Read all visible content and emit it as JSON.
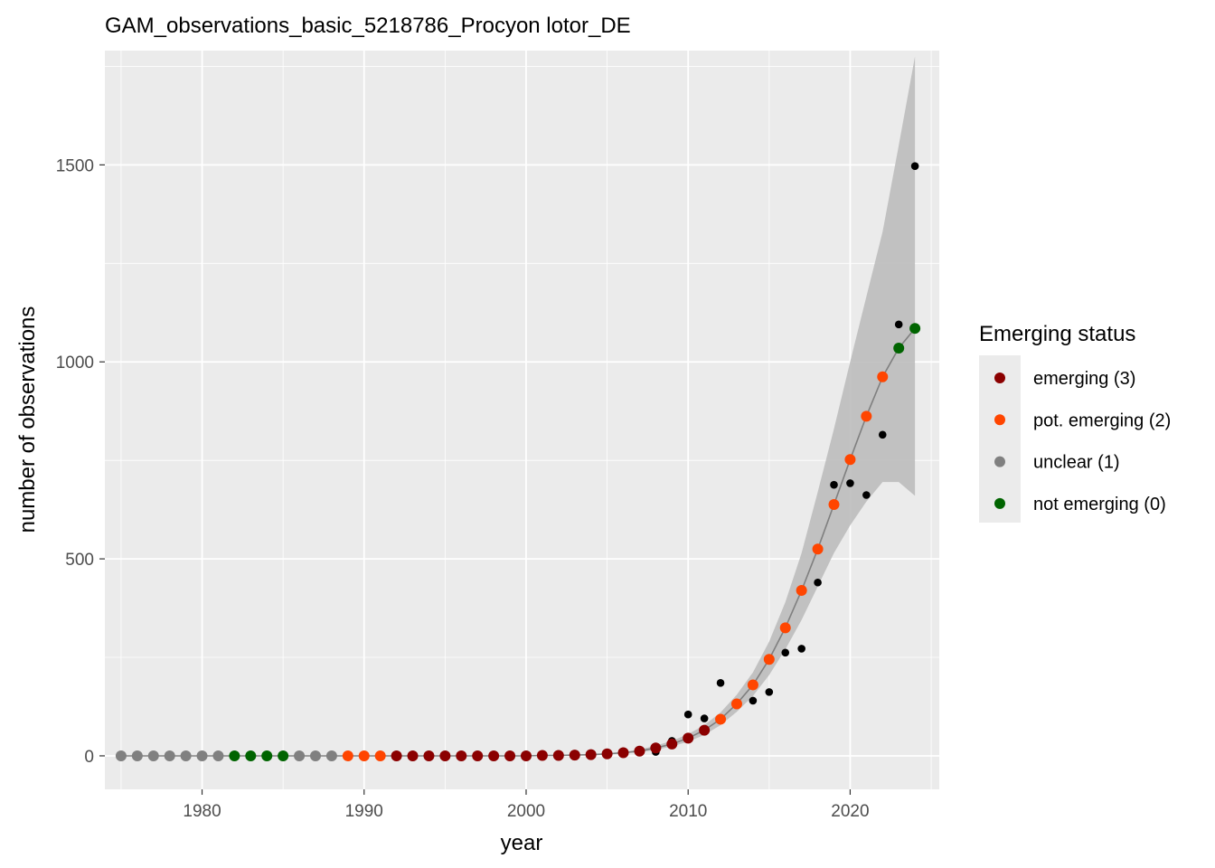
{
  "chart_data": {
    "type": "scatter",
    "title": "GAM_observations_basic_5218786_Procyon lotor_DE",
    "xlabel": "year",
    "ylabel": "number of observations",
    "xlim": [
      1974,
      2025.5
    ],
    "ylim": [
      -85,
      1790
    ],
    "x_ticks": [
      1980,
      1990,
      2000,
      2010,
      2020
    ],
    "x_tick_labels": [
      "1980",
      "1990",
      "2000",
      "2010",
      "2020"
    ],
    "y_ticks": [
      0,
      500,
      1000,
      1500
    ],
    "y_tick_labels": [
      "0",
      "500",
      "1000",
      "1500"
    ],
    "grid": true,
    "legend": {
      "title": "Emerging status",
      "position": "right",
      "entries": [
        {
          "label": "emerging (3)",
          "color": "#8b0000"
        },
        {
          "label": "pot. emerging (2)",
          "color": "#ff4500"
        },
        {
          "label": "unclear (1)",
          "color": "#808080"
        },
        {
          "label": "not emerging (0)",
          "color": "#006400"
        }
      ]
    },
    "colors": {
      "panel": "#ebebeb",
      "grid": "#ffffff",
      "ribbon": "#bdbdbd",
      "fit_line": "#7f7f7f",
      "observed": "#000000"
    },
    "observed": {
      "x": [
        2008,
        2009,
        2010,
        2011,
        2012,
        2014,
        2015,
        2016,
        2017,
        2018,
        2019,
        2020,
        2021,
        2022,
        2023,
        2024
      ],
      "y": [
        10,
        38,
        105,
        95,
        185,
        140,
        162,
        262,
        272,
        440,
        688,
        692,
        662,
        815,
        1095,
        1497
      ]
    },
    "gam_fit": {
      "x": [
        1975,
        1976,
        1977,
        1978,
        1979,
        1980,
        1981,
        1982,
        1983,
        1984,
        1985,
        1986,
        1987,
        1988,
        1989,
        1990,
        1991,
        1992,
        1993,
        1994,
        1995,
        1996,
        1997,
        1998,
        1999,
        2000,
        2001,
        2002,
        2003,
        2004,
        2005,
        2006,
        2007,
        2008,
        2009,
        2010,
        2011,
        2012,
        2013,
        2014,
        2015,
        2016,
        2017,
        2018,
        2019,
        2020,
        2021,
        2022,
        2023,
        2024
      ],
      "y": [
        0,
        0,
        0,
        0,
        0,
        0,
        0,
        0,
        0,
        0,
        0,
        0,
        0,
        0,
        0,
        0,
        0,
        0,
        0,
        0,
        0,
        0,
        0,
        0,
        0,
        0,
        1,
        1,
        2,
        3,
        5,
        8,
        12,
        20,
        30,
        45,
        65,
        93,
        132,
        180,
        245,
        325,
        420,
        525,
        638,
        752,
        862,
        962,
        1035,
        1085
      ],
      "status": [
        1,
        1,
        1,
        1,
        1,
        1,
        1,
        0,
        0,
        0,
        0,
        1,
        1,
        1,
        2,
        2,
        2,
        3,
        3,
        3,
        3,
        3,
        3,
        3,
        3,
        3,
        3,
        3,
        3,
        3,
        3,
        3,
        3,
        3,
        3,
        3,
        3,
        2,
        2,
        2,
        2,
        2,
        2,
        2,
        2,
        2,
        2,
        2,
        0,
        0
      ],
      "ci_lower": [
        0,
        0,
        0,
        0,
        0,
        0,
        0,
        0,
        0,
        0,
        0,
        0,
        0,
        0,
        0,
        0,
        0,
        0,
        0,
        0,
        0,
        0,
        0,
        0,
        0,
        0,
        0,
        0,
        1,
        2,
        4,
        6,
        9,
        15,
        24,
        36,
        53,
        78,
        112,
        152,
        205,
        270,
        345,
        430,
        515,
        585,
        645,
        695,
        695,
        660
      ],
      "ci_upper": [
        0,
        0,
        0,
        0,
        0,
        0,
        0,
        0,
        0,
        0,
        0,
        0,
        0,
        0,
        0,
        0,
        0,
        0,
        0,
        0,
        0,
        0,
        0,
        0,
        0,
        0,
        1,
        2,
        3,
        5,
        7,
        10,
        16,
        26,
        38,
        55,
        78,
        110,
        155,
        212,
        290,
        390,
        515,
        670,
        830,
        1000,
        1165,
        1330,
        1550,
        1775
      ]
    }
  }
}
